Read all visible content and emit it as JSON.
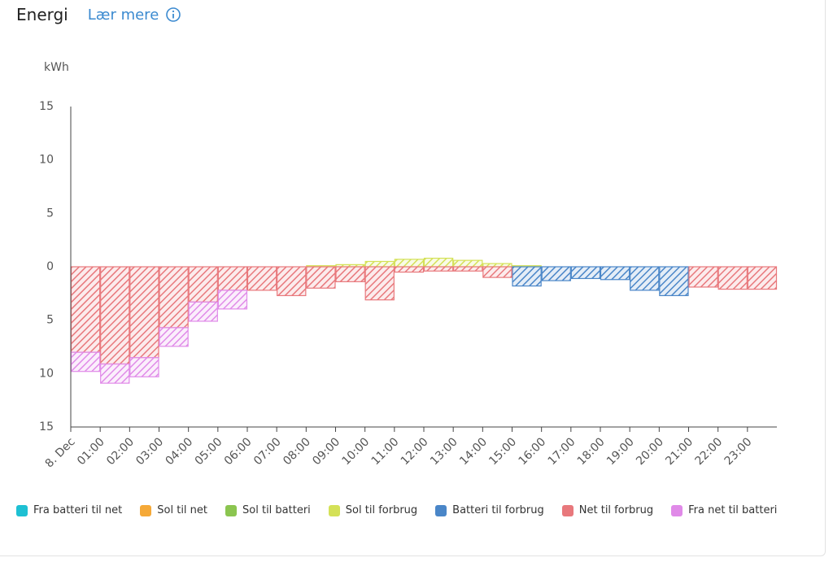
{
  "header": {
    "title": "Energi",
    "link": "Lær mere"
  },
  "chart_data": {
    "type": "bar",
    "stacked": true,
    "y_label": "kWh",
    "categories": [
      "8. Dec",
      "01:00",
      "02:00",
      "03:00",
      "04:00",
      "05:00",
      "06:00",
      "07:00",
      "08:00",
      "09:00",
      "10:00",
      "11:00",
      "12:00",
      "13:00",
      "14:00",
      "15:00",
      "16:00",
      "17:00",
      "18:00",
      "19:00",
      "20:00",
      "21:00",
      "22:00",
      "23:00"
    ],
    "ylim": [
      -15,
      15
    ],
    "yticks": [
      {
        "value": -15,
        "label": "15"
      },
      {
        "value": -10,
        "label": "10"
      },
      {
        "value": -5,
        "label": "5"
      },
      0,
      5,
      10,
      15
    ],
    "series": [
      {
        "name": "Fra batteri til net",
        "color": "#1ec0d3",
        "values": [
          0,
          0,
          0,
          0,
          0,
          0,
          0,
          0,
          0,
          0,
          0,
          0,
          0,
          0,
          0,
          0,
          0,
          0,
          0,
          0,
          0,
          0,
          0,
          0
        ]
      },
      {
        "name": "Sol til net",
        "color": "#f5a938",
        "values": [
          0,
          0,
          0,
          0,
          0,
          0,
          0,
          0,
          0,
          0,
          0,
          0,
          0,
          0,
          0,
          0,
          0,
          0,
          0,
          0,
          0,
          0,
          0,
          0
        ]
      },
      {
        "name": "Sol til batteri",
        "color": "#8bc550",
        "values": [
          0,
          0,
          0,
          0,
          0,
          0,
          0,
          0,
          0,
          0,
          0,
          0,
          0,
          0,
          0,
          0,
          0,
          0,
          0,
          0,
          0,
          0,
          0,
          0
        ]
      },
      {
        "name": "Sol til forbrug",
        "color": "#d4e157",
        "values": [
          0,
          0,
          0,
          0,
          0,
          0,
          0,
          0,
          0.1,
          0.2,
          0.5,
          0.7,
          0.8,
          0.6,
          0.3,
          0.1,
          0,
          0,
          0,
          0,
          0,
          0,
          0,
          0
        ]
      },
      {
        "name": "Batteri til forbrug",
        "color": "#4a86c8",
        "values": [
          0,
          0,
          0,
          0,
          0,
          0,
          0,
          0,
          0,
          0,
          0,
          0,
          0,
          0,
          0,
          -1.8,
          -1.3,
          -1.1,
          -1.2,
          -2.2,
          -2.7,
          0,
          0,
          0
        ]
      },
      {
        "name": "Net til forbrug",
        "color": "#e8787c",
        "values": [
          -8.0,
          -9.1,
          -8.5,
          -5.7,
          -3.3,
          -2.2,
          -2.2,
          -2.7,
          -2.0,
          -1.4,
          -3.1,
          -0.5,
          -0.4,
          -0.4,
          -1.0,
          0,
          0,
          0,
          0,
          0,
          0,
          -1.9,
          -2.1,
          -2.1
        ]
      },
      {
        "name": "Fra net til batteri",
        "color": "#e08ae8",
        "values": [
          -1.8,
          -1.8,
          -1.8,
          -1.75,
          -1.8,
          -1.75,
          0,
          0,
          0,
          0,
          0,
          0,
          0,
          0,
          0,
          0,
          0,
          0,
          0,
          0,
          0,
          0,
          0,
          0
        ]
      }
    ]
  }
}
